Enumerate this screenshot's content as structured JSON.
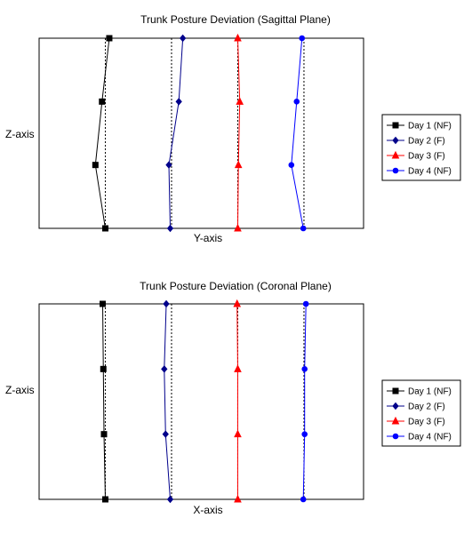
{
  "chart_data": [
    {
      "type": "line",
      "title": "Trunk Posture Deviation (Sagittal Plane)",
      "xlabel": "Y-axis",
      "ylabel": "Z-axis",
      "ylim": [
        0,
        3
      ],
      "grid": false,
      "legend_position": "right",
      "series": [
        {
          "name": "Day 1 (NF)",
          "color": "#000000",
          "marker": "square",
          "reference": 1.0,
          "x": [
            1.0,
            0.85,
            0.95,
            1.06
          ],
          "y": [
            0,
            1,
            2,
            3
          ]
        },
        {
          "name": "Day 2 (F)",
          "color": "#00008b",
          "marker": "diamond",
          "reference": 2.0,
          "x": [
            1.98,
            1.96,
            2.11,
            2.17
          ],
          "y": [
            0,
            1,
            2,
            3
          ]
        },
        {
          "name": "Day 3 (F)",
          "color": "#ff0000",
          "marker": "triangle",
          "reference": 3.0,
          "x": [
            3.0,
            3.01,
            3.03,
            3.0
          ],
          "y": [
            0,
            1,
            2,
            3
          ]
        },
        {
          "name": "Day 4 (NF)",
          "color": "#0000ff",
          "marker": "circle",
          "reference": 4.0,
          "x": [
            3.99,
            3.81,
            3.89,
            3.97
          ],
          "y": [
            0,
            1,
            2,
            3
          ]
        }
      ]
    },
    {
      "type": "line",
      "title": "Trunk Posture Deviation (Coronal Plane)",
      "xlabel": "X-axis",
      "ylabel": "Z-axis",
      "ylim": [
        0,
        3
      ],
      "grid": false,
      "legend_position": "right",
      "series": [
        {
          "name": "Day 1 (NF)",
          "color": "#000000",
          "marker": "square",
          "reference": 1.0,
          "x": [
            1.0,
            0.98,
            0.97,
            0.96
          ],
          "y": [
            0,
            1,
            2,
            3
          ]
        },
        {
          "name": "Day 2 (F)",
          "color": "#00008b",
          "marker": "diamond",
          "reference": 2.0,
          "x": [
            1.98,
            1.91,
            1.89,
            1.92
          ],
          "y": [
            0,
            1,
            2,
            3
          ]
        },
        {
          "name": "Day 3 (F)",
          "color": "#ff0000",
          "marker": "triangle",
          "reference": 3.0,
          "x": [
            3.0,
            3.0,
            3.0,
            2.99
          ],
          "y": [
            0,
            1,
            2,
            3
          ]
        },
        {
          "name": "Day 4 (NF)",
          "color": "#0000ff",
          "marker": "circle",
          "reference": 4.0,
          "x": [
            3.99,
            4.01,
            4.01,
            4.03
          ],
          "y": [
            0,
            1,
            2,
            3
          ]
        }
      ]
    }
  ]
}
